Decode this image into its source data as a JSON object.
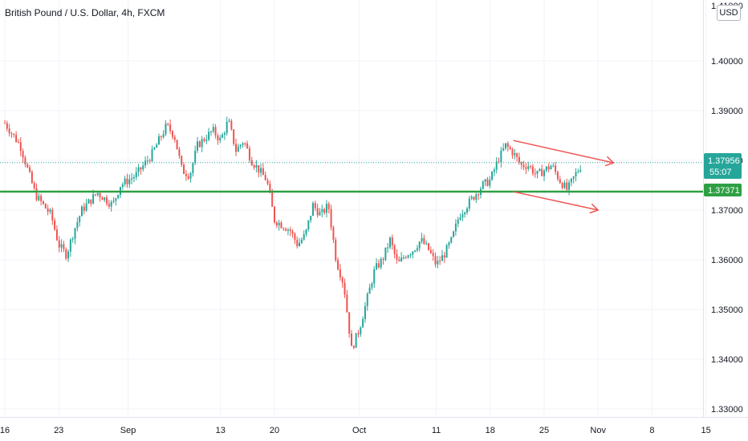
{
  "header": {
    "symbol_title": "British Pound / U.S. Dollar, 4h, FXCM",
    "currency_badge": "USD"
  },
  "colors": {
    "up_candle": "#26a69a",
    "down_candle": "#ef5350",
    "support_line": "#2ea043",
    "trend_lines": "#ef5350",
    "grid": "#f0f3fa",
    "axis_text": "#131722",
    "price_label_bg": "#26a69a"
  },
  "chart_data": {
    "type": "candlestick",
    "title": "British Pound / U.S. Dollar, 4h, FXCM",
    "ylim": [
      1.33,
      1.41
    ],
    "yticks": [
      "1.40000",
      "1.39000",
      "1.38000",
      "1.37000",
      "1.36000",
      "1.35000",
      "1.34000",
      "1.33000"
    ],
    "y_tick_top_partial": "1.41000",
    "xticks": [
      "16",
      "23",
      "Sep",
      "13",
      "20",
      "Oct",
      "11",
      "18",
      "25",
      "Nov",
      "8",
      "15"
    ],
    "x_domain_days": [
      "Aug 16",
      "Nov 15"
    ],
    "grid": true,
    "current_price": "1.37956",
    "countdown": "55:07",
    "support_level": "1.37371",
    "support_level_value": 1.37371,
    "dotted_line_value": 1.37956,
    "channel_upper": [
      {
        "date": "Oct 21",
        "price": 1.384
      },
      {
        "date": "Nov 3",
        "price": 1.3795
      }
    ],
    "channel_lower": [
      {
        "date": "Oct 21",
        "price": 1.3737
      },
      {
        "date": "Nov 1",
        "price": 1.37
      }
    ],
    "price_path": [
      {
        "date": "Aug 16",
        "price": 1.3875
      },
      {
        "date": "Aug 18",
        "price": 1.383
      },
      {
        "date": "Aug 20",
        "price": 1.373
      },
      {
        "date": "Aug 22",
        "price": 1.369
      },
      {
        "date": "Aug 23",
        "price": 1.363
      },
      {
        "date": "Aug 24",
        "price": 1.361
      },
      {
        "date": "Aug 25",
        "price": 1.366
      },
      {
        "date": "Aug 26",
        "price": 1.37
      },
      {
        "date": "Aug 28",
        "price": 1.3735
      },
      {
        "date": "Aug 30",
        "price": 1.371
      },
      {
        "date": "Aug 31",
        "price": 1.375
      },
      {
        "date": "Sep 2",
        "price": 1.377
      },
      {
        "date": "Sep 4",
        "price": 1.381
      },
      {
        "date": "Sep 6",
        "price": 1.387
      },
      {
        "date": "Sep 7",
        "price": 1.385
      },
      {
        "date": "Sep 8",
        "price": 1.378
      },
      {
        "date": "Sep 9",
        "price": 1.377
      },
      {
        "date": "Sep 10",
        "price": 1.383
      },
      {
        "date": "Sep 12",
        "price": 1.386
      },
      {
        "date": "Sep 13",
        "price": 1.384
      },
      {
        "date": "Sep 14",
        "price": 1.388
      },
      {
        "date": "Sep 15",
        "price": 1.382
      },
      {
        "date": "Sep 16",
        "price": 1.384
      },
      {
        "date": "Sep 17",
        "price": 1.38
      },
      {
        "date": "Sep 19",
        "price": 1.376
      },
      {
        "date": "Sep 20",
        "price": 1.368
      },
      {
        "date": "Sep 22",
        "price": 1.366
      },
      {
        "date": "Sep 23",
        "price": 1.363
      },
      {
        "date": "Sep 24",
        "price": 1.365
      },
      {
        "date": "Sep 25",
        "price": 1.371
      },
      {
        "date": "Sep 26",
        "price": 1.369
      },
      {
        "date": "Sep 27",
        "price": 1.371
      },
      {
        "date": "Sep 28",
        "price": 1.36
      },
      {
        "date": "Sep 29",
        "price": 1.355
      },
      {
        "date": "Sep 30",
        "price": 1.342
      },
      {
        "date": "Oct 1",
        "price": 1.346
      },
      {
        "date": "Oct 2",
        "price": 1.352
      },
      {
        "date": "Oct 3",
        "price": 1.358
      },
      {
        "date": "Oct 4",
        "price": 1.36
      },
      {
        "date": "Oct 5",
        "price": 1.364
      },
      {
        "date": "Oct 6",
        "price": 1.359
      },
      {
        "date": "Oct 7",
        "price": 1.361
      },
      {
        "date": "Oct 8",
        "price": 1.362
      },
      {
        "date": "Oct 9",
        "price": 1.364
      },
      {
        "date": "Oct 10",
        "price": 1.362
      },
      {
        "date": "Oct 11",
        "price": 1.359
      },
      {
        "date": "Oct 12",
        "price": 1.361
      },
      {
        "date": "Oct 13",
        "price": 1.364
      },
      {
        "date": "Oct 14",
        "price": 1.369
      },
      {
        "date": "Oct 15",
        "price": 1.371
      },
      {
        "date": "Oct 16",
        "price": 1.373
      },
      {
        "date": "Oct 17",
        "price": 1.375
      },
      {
        "date": "Oct 18",
        "price": 1.376
      },
      {
        "date": "Oct 19",
        "price": 1.38
      },
      {
        "date": "Oct 20",
        "price": 1.383
      },
      {
        "date": "Oct 21",
        "price": 1.3815
      },
      {
        "date": "Oct 22",
        "price": 1.379
      },
      {
        "date": "Oct 23",
        "price": 1.379
      },
      {
        "date": "Oct 24",
        "price": 1.377
      },
      {
        "date": "Oct 25",
        "price": 1.378
      },
      {
        "date": "Oct 26",
        "price": 1.379
      },
      {
        "date": "Oct 27",
        "price": 1.376
      },
      {
        "date": "Oct 28",
        "price": 1.374
      },
      {
        "date": "Oct 29",
        "price": 1.377
      },
      {
        "date": "Oct 30",
        "price": 1.3795
      }
    ]
  }
}
